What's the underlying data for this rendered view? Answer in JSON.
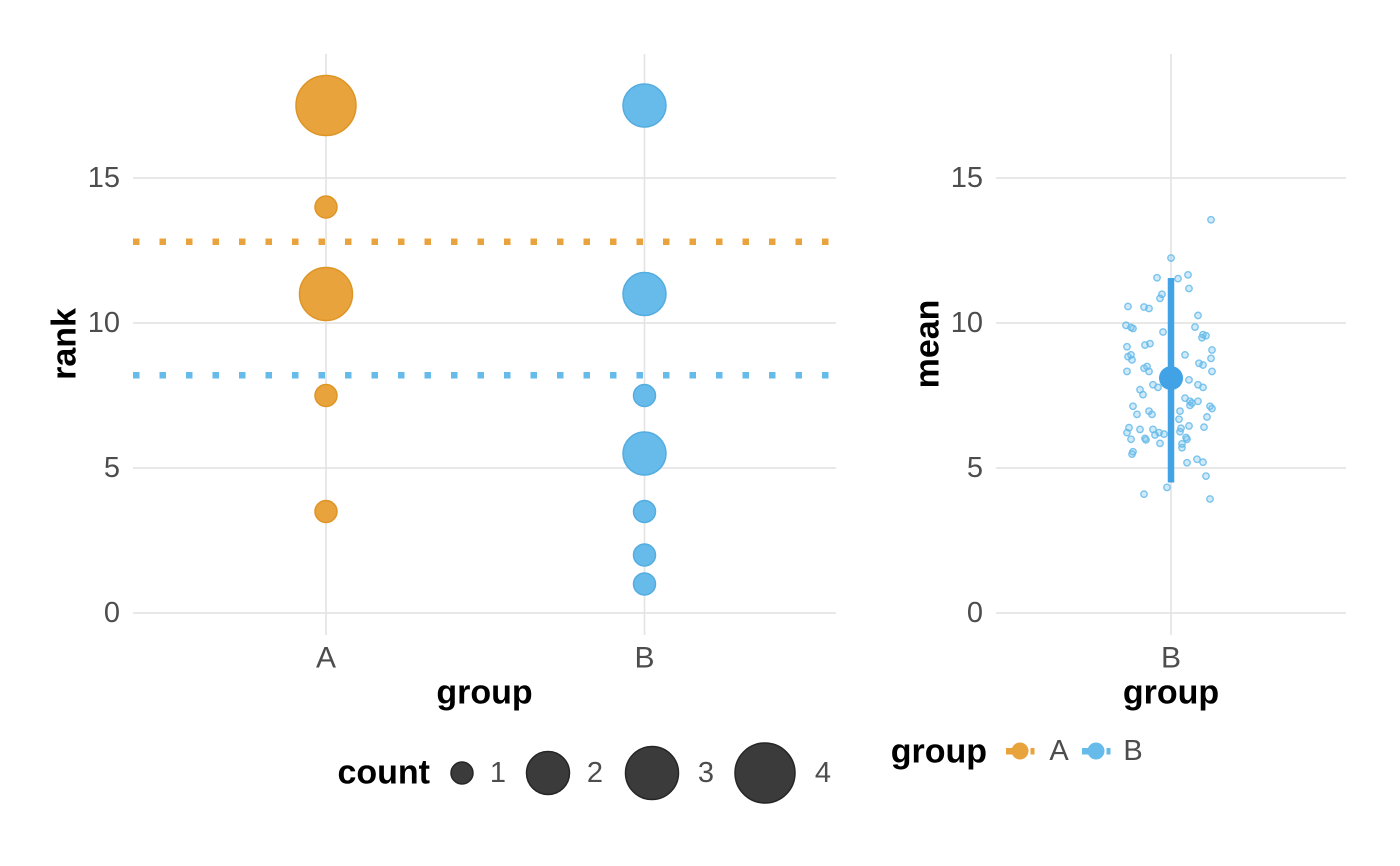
{
  "colors": {
    "background": "#FFFFFF",
    "grid": "#E4E4E4",
    "tick_text": "#4D4D4D",
    "title_text": "#000000",
    "orange": "#E9A33C",
    "blue": "#66BBEA",
    "summary_blue": "#41A3E5",
    "legend_circle": "#3B3B3B"
  },
  "chart_data": [
    {
      "type": "scatter",
      "subtype": "bubble",
      "title": "",
      "xlabel": "group",
      "ylabel": "rank",
      "categories": [
        "A",
        "B"
      ],
      "yticks": [
        0,
        5,
        10,
        15
      ],
      "ylim": [
        -0.8,
        19.3
      ],
      "grid": true,
      "series": [
        {
          "name": "A",
          "color": "#E9A33C",
          "stroke": "#DE9526",
          "mean_line": 12.8,
          "mean_line_style": "dotted",
          "points": [
            {
              "rank": 17.5,
              "count": 4
            },
            {
              "rank": 14,
              "count": 1
            },
            {
              "rank": 11,
              "count": 3
            },
            {
              "rank": 7.5,
              "count": 1
            },
            {
              "rank": 3.5,
              "count": 1
            }
          ]
        },
        {
          "name": "B",
          "color": "#66BBEA",
          "stroke": "#54ACDF",
          "mean_line": 8.2,
          "mean_line_style": "dotted",
          "points": [
            {
              "rank": 17.5,
              "count": 2
            },
            {
              "rank": 11,
              "count": 2
            },
            {
              "rank": 7.5,
              "count": 1
            },
            {
              "rank": 5.5,
              "count": 2
            },
            {
              "rank": 3.5,
              "count": 1
            },
            {
              "rank": 2,
              "count": 1
            },
            {
              "rank": 1,
              "count": 1
            }
          ]
        }
      ]
    },
    {
      "type": "scatter",
      "subtype": "jitter-summary",
      "title": "",
      "xlabel": "group",
      "ylabel": "mean",
      "categories": [
        "B"
      ],
      "yticks": [
        0,
        5,
        10,
        15
      ],
      "ylim": [
        -0.8,
        19.3
      ],
      "grid": true,
      "summary": {
        "group": "B",
        "mean": 8.1,
        "lower": 4.5,
        "upper": 11.55,
        "color": "#41A3E5"
      },
      "jitter": {
        "color": "#66BBEA",
        "points": [
          [
            40,
            13.56
          ],
          [
            0,
            12.24
          ],
          [
            -14,
            11.56
          ],
          [
            17,
            11.66
          ],
          [
            7,
            11.53
          ],
          [
            18,
            11.19
          ],
          [
            -9,
            10.99
          ],
          [
            -11,
            10.85
          ],
          [
            -43,
            10.57
          ],
          [
            -27,
            10.55
          ],
          [
            -22,
            10.5
          ],
          [
            27,
            10.26
          ],
          [
            -45,
            9.92
          ],
          [
            -40,
            9.85
          ],
          [
            -38,
            9.81
          ],
          [
            24,
            9.86
          ],
          [
            -8,
            9.69
          ],
          [
            32,
            9.6
          ],
          [
            35,
            9.56
          ],
          [
            31,
            9.49
          ],
          [
            -21,
            9.29
          ],
          [
            -26,
            9.24
          ],
          [
            -44,
            9.18
          ],
          [
            41,
            9.07
          ],
          [
            -40,
            8.9
          ],
          [
            14,
            8.9
          ],
          [
            -43,
            8.84
          ],
          [
            40,
            8.78
          ],
          [
            -39,
            8.73
          ],
          [
            28,
            8.61
          ],
          [
            32,
            8.55
          ],
          [
            -24,
            8.5
          ],
          [
            -27,
            8.44
          ],
          [
            -22,
            8.33
          ],
          [
            -44,
            8.33
          ],
          [
            41,
            8.33
          ],
          [
            18,
            8.04
          ],
          [
            -18,
            7.87
          ],
          [
            27,
            7.87
          ],
          [
            -13,
            7.78
          ],
          [
            32,
            7.78
          ],
          [
            -31,
            7.7
          ],
          [
            -28,
            7.53
          ],
          [
            14,
            7.41
          ],
          [
            19,
            7.3
          ],
          [
            27,
            7.3
          ],
          [
            21,
            7.24
          ],
          [
            19,
            7.16
          ],
          [
            -38,
            7.13
          ],
          [
            39,
            7.13
          ],
          [
            41,
            7.05
          ],
          [
            -22,
            6.96
          ],
          [
            9,
            6.96
          ],
          [
            -34,
            6.85
          ],
          [
            -19,
            6.85
          ],
          [
            36,
            6.76
          ],
          [
            8,
            6.68
          ],
          [
            18,
            6.45
          ],
          [
            33,
            6.41
          ],
          [
            -42,
            6.39
          ],
          [
            10,
            6.37
          ],
          [
            -31,
            6.33
          ],
          [
            -18,
            6.33
          ],
          [
            -44,
            6.22
          ],
          [
            -12,
            6.22
          ],
          [
            9,
            6.25
          ],
          [
            -7,
            6.17
          ],
          [
            -16,
            6.14
          ],
          [
            15,
            6.05
          ],
          [
            -26,
            6.02
          ],
          [
            -40,
            5.99
          ],
          [
            -25,
            5.97
          ],
          [
            16,
            5.99
          ],
          [
            -11,
            5.85
          ],
          [
            11,
            5.83
          ],
          [
            11,
            5.7
          ],
          [
            -38,
            5.56
          ],
          [
            -39,
            5.48
          ],
          [
            26,
            5.3
          ],
          [
            32,
            5.2
          ],
          [
            16,
            5.18
          ],
          [
            35,
            4.72
          ],
          [
            -4,
            4.33
          ],
          [
            -27,
            4.1
          ],
          [
            39,
            3.93
          ]
        ]
      }
    }
  ],
  "legends": {
    "size": {
      "title": "count",
      "values": [
        "1",
        "2",
        "3",
        "4"
      ],
      "color": "#3B3B3B"
    },
    "group": {
      "title": "group",
      "items": [
        {
          "label": "A",
          "color": "#E9A33C"
        },
        {
          "label": "B",
          "color": "#66BBEA"
        }
      ]
    }
  }
}
